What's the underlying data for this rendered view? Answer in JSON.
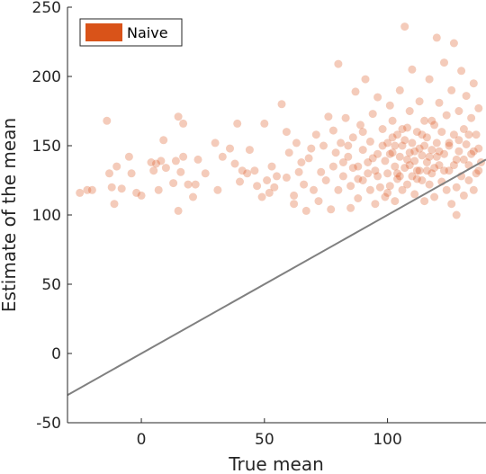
{
  "chart_data": {
    "type": "scatter",
    "title": "",
    "xlabel": "True mean",
    "ylabel": "Estimate of the mean",
    "xlim": [
      -30,
      140
    ],
    "ylim": [
      -50,
      250
    ],
    "xticks": [
      0,
      50,
      100
    ],
    "yticks": [
      -50,
      0,
      50,
      100,
      150,
      200,
      250
    ],
    "grid": false,
    "legend": {
      "placement": "top-left",
      "entries": [
        "Naive"
      ]
    },
    "reference_line": {
      "label": "",
      "slope": 1,
      "intercept": 0,
      "color": "#808080"
    },
    "series": [
      {
        "name": "Naive",
        "color": "#d95319",
        "opacity": 0.3,
        "points": [
          [
            -25,
            116
          ],
          [
            -22,
            118
          ],
          [
            -20,
            118
          ],
          [
            -14,
            168
          ],
          [
            -13,
            130
          ],
          [
            -12,
            120
          ],
          [
            -11,
            108
          ],
          [
            -10,
            135
          ],
          [
            -8,
            119
          ],
          [
            -5,
            142
          ],
          [
            -4,
            130
          ],
          [
            -2,
            116
          ],
          [
            0,
            114
          ],
          [
            4,
            138
          ],
          [
            5,
            132
          ],
          [
            6,
            137
          ],
          [
            7,
            118
          ],
          [
            8,
            139
          ],
          [
            9,
            154
          ],
          [
            10,
            134
          ],
          [
            13,
            123
          ],
          [
            14,
            139
          ],
          [
            15,
            171
          ],
          [
            15,
            103
          ],
          [
            17,
            166
          ],
          [
            16,
            131
          ],
          [
            17,
            142
          ],
          [
            19,
            122
          ],
          [
            21,
            113
          ],
          [
            22,
            122
          ],
          [
            23,
            140
          ],
          [
            26,
            130
          ],
          [
            30,
            152
          ],
          [
            31,
            118
          ],
          [
            33,
            142
          ],
          [
            36,
            148
          ],
          [
            38,
            137
          ],
          [
            39,
            166
          ],
          [
            40,
            124
          ],
          [
            41,
            132
          ],
          [
            43,
            130
          ],
          [
            44,
            147
          ],
          [
            46,
            132
          ],
          [
            47,
            121
          ],
          [
            49,
            113
          ],
          [
            50,
            166
          ],
          [
            51,
            125
          ],
          [
            52,
            116
          ],
          [
            53,
            135
          ],
          [
            54,
            120
          ],
          [
            55,
            128
          ],
          [
            57,
            180
          ],
          [
            59,
            160
          ],
          [
            59,
            127
          ],
          [
            60,
            145
          ],
          [
            62,
            114
          ],
          [
            62,
            108
          ],
          [
            63,
            152
          ],
          [
            64,
            131
          ],
          [
            65,
            138
          ],
          [
            66,
            122
          ],
          [
            67,
            103
          ],
          [
            68,
            141
          ],
          [
            69,
            148
          ],
          [
            70,
            118
          ],
          [
            71,
            158
          ],
          [
            72,
            110
          ],
          [
            73,
            131
          ],
          [
            74,
            150
          ],
          [
            75,
            125
          ],
          [
            76,
            171
          ],
          [
            77,
            104
          ],
          [
            78,
            135
          ],
          [
            78,
            161
          ],
          [
            79,
            145
          ],
          [
            80,
            209
          ],
          [
            80,
            118
          ],
          [
            81,
            152
          ],
          [
            82,
            128
          ],
          [
            83,
            170
          ],
          [
            84,
            142
          ],
          [
            85,
            121
          ],
          [
            85,
            105
          ],
          [
            86,
            156
          ],
          [
            87,
            189
          ],
          [
            88,
            135
          ],
          [
            88,
            112
          ],
          [
            89,
            165
          ],
          [
            90,
            147
          ],
          [
            90,
            125
          ],
          [
            91,
            198
          ],
          [
            92,
            138
          ],
          [
            93,
            118
          ],
          [
            93,
            153
          ],
          [
            94,
            173
          ],
          [
            95,
            132
          ],
          [
            95,
            108
          ],
          [
            96,
            185
          ],
          [
            96,
            144
          ],
          [
            97,
            120
          ],
          [
            98,
            162
          ],
          [
            99,
            139
          ],
          [
            99,
            113
          ],
          [
            100,
            152
          ],
          [
            100,
            130
          ],
          [
            101,
            179
          ],
          [
            101,
            121
          ],
          [
            102,
            145
          ],
          [
            102,
            168
          ],
          [
            103,
            110
          ],
          [
            103,
            135
          ],
          [
            104,
            158
          ],
          [
            104,
            126
          ],
          [
            105,
            142
          ],
          [
            105,
            190
          ],
          [
            106,
            118
          ],
          [
            106,
            150
          ],
          [
            107,
            236
          ],
          [
            107,
            134
          ],
          [
            108,
            163
          ],
          [
            108,
            122
          ],
          [
            109,
            145
          ],
          [
            109,
            175
          ],
          [
            110,
            128
          ],
          [
            110,
            205
          ],
          [
            111,
            139
          ],
          [
            111,
            115
          ],
          [
            112,
            160
          ],
          [
            112,
            132
          ],
          [
            113,
            148
          ],
          [
            113,
            182
          ],
          [
            114,
            125
          ],
          [
            114,
            143
          ],
          [
            115,
            168
          ],
          [
            115,
            110
          ],
          [
            116,
            138
          ],
          [
            116,
            156
          ],
          [
            117,
            122
          ],
          [
            117,
            198
          ],
          [
            118,
            147
          ],
          [
            118,
            130
          ],
          [
            119,
            165
          ],
          [
            119,
            113
          ],
          [
            120,
            152
          ],
          [
            120,
            228
          ],
          [
            121,
            136
          ],
          [
            121,
            181
          ],
          [
            122,
            124
          ],
          [
            122,
            160
          ],
          [
            123,
            144
          ],
          [
            123,
            210
          ],
          [
            124,
            118
          ],
          [
            124,
            172
          ],
          [
            125,
            150
          ],
          [
            125,
            132
          ],
          [
            126,
            190
          ],
          [
            126,
            108
          ],
          [
            127,
            158
          ],
          [
            127,
            224
          ],
          [
            128,
            140
          ],
          [
            128,
            120
          ],
          [
            129,
            175
          ],
          [
            129,
            146
          ],
          [
            130,
            128
          ],
          [
            130,
            204
          ],
          [
            131,
            162
          ],
          [
            131,
            114
          ],
          [
            132,
            151
          ],
          [
            132,
            186
          ],
          [
            133,
            136
          ],
          [
            133,
            125
          ],
          [
            134,
            170
          ],
          [
            134,
            144
          ],
          [
            135,
            118
          ],
          [
            135,
            195
          ],
          [
            136,
            158
          ],
          [
            136,
            130
          ],
          [
            137,
            177
          ],
          [
            137,
            148
          ],
          [
            138,
            138
          ],
          [
            102,
            156
          ],
          [
            104,
            130
          ],
          [
            106,
            162
          ],
          [
            108,
            140
          ],
          [
            110,
            152
          ],
          [
            112,
            126
          ],
          [
            114,
            158
          ],
          [
            116,
            132
          ],
          [
            118,
            168
          ],
          [
            120,
            142
          ],
          [
            96,
            128
          ],
          [
            98,
            150
          ],
          [
            92,
            130
          ],
          [
            94,
            141
          ],
          [
            86,
            134
          ],
          [
            88,
            126
          ],
          [
            84,
            150
          ],
          [
            82,
            138
          ],
          [
            90,
            160
          ],
          [
            100,
            116
          ],
          [
            101,
            144
          ],
          [
            103,
            150
          ],
          [
            105,
            128
          ],
          [
            107,
            154
          ],
          [
            109,
            136
          ],
          [
            111,
            146
          ],
          [
            113,
            132
          ],
          [
            115,
            150
          ],
          [
            117,
            142
          ],
          [
            119,
            134
          ],
          [
            121,
            146
          ],
          [
            123,
            132
          ],
          [
            125,
            152
          ],
          [
            127,
            136
          ],
          [
            129,
            154
          ],
          [
            131,
            140
          ],
          [
            133,
            158
          ],
          [
            135,
            146
          ],
          [
            137,
            132
          ],
          [
            128,
            100
          ]
        ]
      }
    ]
  }
}
